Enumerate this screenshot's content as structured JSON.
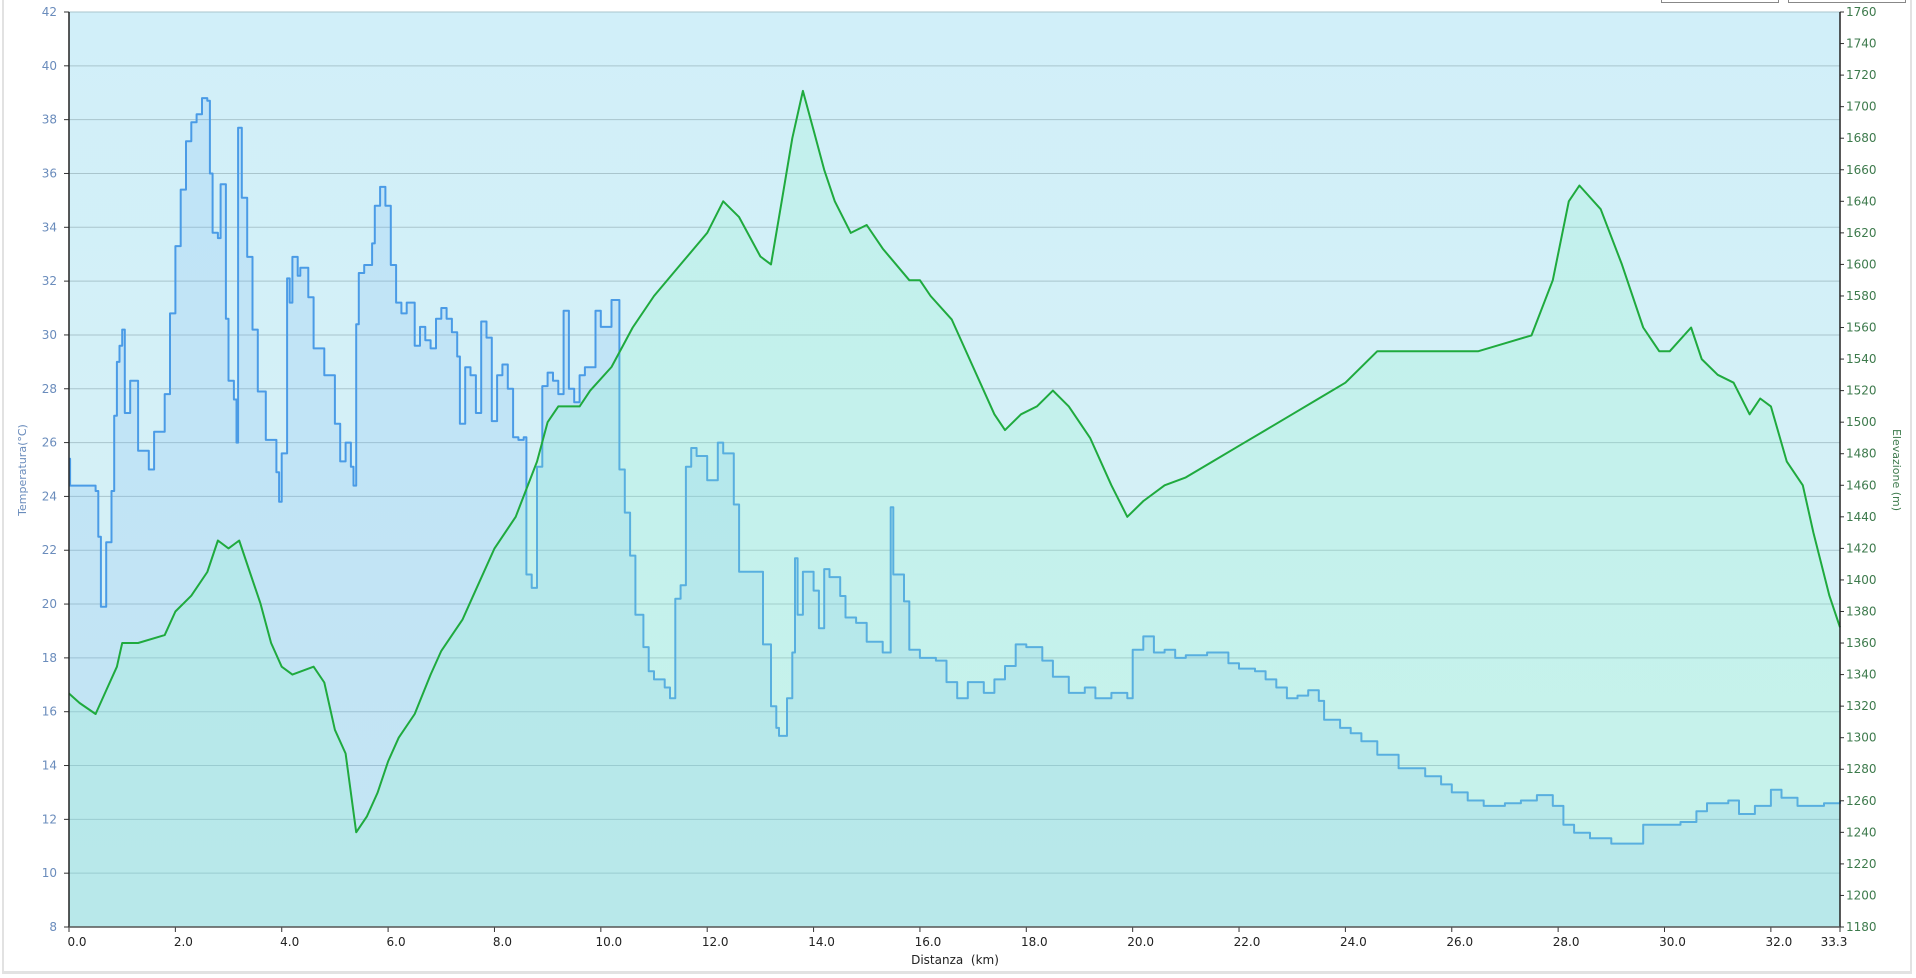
{
  "chart_data": {
    "type": "line",
    "title": "",
    "xlabel": "Distanza  (km)",
    "ylabel": "Temperatura(°C)",
    "y2label": "Elevazione (m)",
    "xlim": [
      0,
      33.3
    ],
    "ylim": [
      8,
      42
    ],
    "y2lim": [
      1180,
      1760
    ],
    "x_ticks": [
      "0.0",
      "2.0",
      "4.0",
      "6.0",
      "8.0",
      "10.0",
      "12.0",
      "14.0",
      "16.0",
      "18.0",
      "20.0",
      "22.0",
      "24.0",
      "26.0",
      "28.0",
      "30.0",
      "32.0",
      "33.3"
    ],
    "y_ticks": [
      8,
      10,
      12,
      14,
      16,
      18,
      20,
      22,
      24,
      26,
      28,
      30,
      32,
      34,
      36,
      38,
      40,
      42
    ],
    "y2_ticks": [
      1180,
      1200,
      1220,
      1240,
      1260,
      1280,
      1300,
      1320,
      1340,
      1360,
      1380,
      1400,
      1420,
      1440,
      1460,
      1480,
      1500,
      1520,
      1540,
      1560,
      1580,
      1600,
      1620,
      1640,
      1660,
      1680,
      1700,
      1720,
      1740,
      1760
    ],
    "grid": true,
    "colors": {
      "temperature": "#4a9be6",
      "elevation": "#1faa3e",
      "bg_top": "#d1eff9",
      "bg_bottom": "#d7f1f4",
      "grid": "#a9c5cd"
    },
    "series": [
      {
        "name": "Temperatura",
        "axis": "left",
        "step": true,
        "x": [
          0,
          0.02,
          0.5,
          0.55,
          0.6,
          0.7,
          0.8,
          0.85,
          0.9,
          0.95,
          1.0,
          1.05,
          1.15,
          1.3,
          1.5,
          1.6,
          1.8,
          1.9,
          2.0,
          2.1,
          2.2,
          2.3,
          2.4,
          2.5,
          2.6,
          2.65,
          2.7,
          2.8,
          2.85,
          2.95,
          3.0,
          3.1,
          3.15,
          3.18,
          3.25,
          3.35,
          3.45,
          3.55,
          3.7,
          3.9,
          3.95,
          4.0,
          4.1,
          4.15,
          4.2,
          4.3,
          4.35,
          4.5,
          4.6,
          4.8,
          5.0,
          5.1,
          5.2,
          5.3,
          5.35,
          5.4,
          5.45,
          5.55,
          5.7,
          5.75,
          5.85,
          5.95,
          6.05,
          6.15,
          6.25,
          6.35,
          6.5,
          6.6,
          6.7,
          6.8,
          6.9,
          7.0,
          7.1,
          7.2,
          7.3,
          7.35,
          7.45,
          7.55,
          7.65,
          7.75,
          7.85,
          7.95,
          8.05,
          8.15,
          8.25,
          8.35,
          8.45,
          8.55,
          8.6,
          8.7,
          8.8,
          8.9,
          9.0,
          9.1,
          9.2,
          9.3,
          9.4,
          9.5,
          9.6,
          9.7,
          9.9,
          10.0,
          10.2,
          10.35,
          10.45,
          10.55,
          10.65,
          10.8,
          10.9,
          11.0,
          11.2,
          11.3,
          11.4,
          11.5,
          11.6,
          11.7,
          11.8,
          12.0,
          12.2,
          12.3,
          12.5,
          12.6,
          12.9,
          13.05,
          13.2,
          13.3,
          13.35,
          13.5,
          13.6,
          13.65,
          13.7,
          13.8,
          14.0,
          14.1,
          14.2,
          14.3,
          14.5,
          14.6,
          14.8,
          15.0,
          15.3,
          15.45,
          15.5,
          15.7,
          15.8,
          16.0,
          16.3,
          16.5,
          16.7,
          16.9,
          17.2,
          17.4,
          17.6,
          17.8,
          18.0,
          18.3,
          18.5,
          18.8,
          19.1,
          19.3,
          19.6,
          19.9,
          20.0,
          20.2,
          20.4,
          20.6,
          20.8,
          21.0,
          21.4,
          21.8,
          22.0,
          22.3,
          22.5,
          22.7,
          22.9,
          23.1,
          23.3,
          23.5,
          23.6,
          23.9,
          24.1,
          24.3,
          24.6,
          25.0,
          25.5,
          25.8,
          26.0,
          26.3,
          26.6,
          27.0,
          27.3,
          27.6,
          27.9,
          28.1,
          28.3,
          28.6,
          29.0,
          29.4,
          29.6,
          30.0,
          30.3,
          30.6,
          30.8,
          31.2,
          31.4,
          31.7,
          32.0,
          32.2,
          32.5,
          33.0,
          33.3
        ],
        "values": [
          25.4,
          24.4,
          24.2,
          22.5,
          19.9,
          22.3,
          24.2,
          27,
          29,
          29.6,
          30.2,
          27.1,
          28.3,
          25.7,
          25,
          26.4,
          27.8,
          30.8,
          33.3,
          35.4,
          37.2,
          37.9,
          38.2,
          38.8,
          38.7,
          36,
          33.8,
          33.6,
          35.6,
          30.6,
          28.3,
          27.6,
          26,
          37.7,
          35.1,
          32.9,
          30.2,
          27.9,
          26.1,
          24.9,
          23.8,
          25.6,
          32.1,
          31.2,
          32.9,
          32.2,
          32.5,
          31.4,
          29.5,
          28.5,
          26.7,
          25.3,
          26,
          25.1,
          24.4,
          30.4,
          32.3,
          32.6,
          33.4,
          34.8,
          35.5,
          34.8,
          32.6,
          31.2,
          30.8,
          31.2,
          29.6,
          30.3,
          29.8,
          29.5,
          30.6,
          31,
          30.6,
          30.1,
          29.2,
          26.7,
          28.8,
          28.5,
          27.1,
          30.5,
          29.9,
          26.8,
          28.5,
          28.9,
          28,
          26.2,
          26.1,
          26.2,
          21.1,
          20.6,
          25.1,
          28.1,
          28.6,
          28.3,
          27.8,
          30.9,
          28,
          27.5,
          28.5,
          28.8,
          30.9,
          30.3,
          31.3,
          25,
          23.4,
          21.8,
          19.6,
          18.4,
          17.5,
          17.2,
          16.9,
          16.5,
          20.2,
          20.7,
          25.1,
          25.8,
          25.5,
          24.6,
          26,
          25.6,
          23.7,
          21.2,
          21.2,
          18.5,
          16.2,
          15.4,
          15.1,
          16.5,
          18.2,
          21.7,
          19.6,
          21.2,
          20.5,
          19.1,
          21.3,
          21,
          20.3,
          19.5,
          19.3,
          18.6,
          18.2,
          23.6,
          21.1,
          20.1,
          18.3,
          18,
          17.9,
          17.1,
          16.5,
          17.1,
          16.7,
          17.2,
          17.7,
          18.5,
          18.4,
          17.9,
          17.3,
          16.7,
          16.9,
          16.5,
          16.7,
          16.5,
          18.3,
          18.8,
          18.2,
          18.3,
          18,
          18.1,
          18.2,
          17.8,
          17.6,
          17.5,
          17.2,
          16.9,
          16.5,
          16.6,
          16.8,
          16.4,
          15.7,
          15.4,
          15.2,
          14.9,
          14.4,
          13.9,
          13.6,
          13.3,
          13,
          12.7,
          12.5,
          12.6,
          12.7,
          12.9,
          12.5,
          11.8,
          11.5,
          11.3,
          11.1,
          11.1,
          11.8,
          11.8,
          11.9,
          12.3,
          12.6,
          12.7,
          12.2,
          12.5,
          13.1,
          12.8,
          12.5,
          12.6,
          12.7
        ]
      },
      {
        "name": "Elevazione",
        "axis": "right",
        "step": false,
        "x": [
          0,
          0.2,
          0.5,
          0.7,
          0.9,
          1.0,
          1.3,
          1.8,
          2.0,
          2.3,
          2.6,
          2.8,
          3.0,
          3.2,
          3.4,
          3.6,
          3.8,
          4.0,
          4.2,
          4.6,
          4.8,
          5.0,
          5.2,
          5.4,
          5.6,
          5.8,
          6.0,
          6.2,
          6.5,
          6.8,
          7.0,
          7.4,
          7.6,
          8.0,
          8.4,
          8.8,
          9.0,
          9.2,
          9.6,
          9.8,
          10.2,
          10.6,
          11.0,
          11.5,
          12.0,
          12.3,
          12.6,
          13.0,
          13.2,
          13.4,
          13.6,
          13.8,
          14.0,
          14.2,
          14.4,
          14.7,
          15.0,
          15.3,
          15.8,
          16.0,
          16.2,
          16.6,
          17.0,
          17.4,
          17.6,
          17.9,
          18.2,
          18.5,
          18.8,
          19.2,
          19.6,
          19.9,
          20.2,
          20.6,
          21.0,
          21.5,
          22.0,
          22.5,
          23.0,
          23.5,
          24.0,
          24.6,
          25.0,
          25.5,
          26.0,
          26.5,
          27.0,
          27.5,
          27.9,
          28.2,
          28.4,
          28.8,
          29.2,
          29.6,
          29.9,
          30.1,
          30.5,
          30.7,
          31.0,
          31.3,
          31.6,
          31.8,
          32.0,
          32.3,
          32.6,
          32.8,
          33.1,
          33.3
        ],
        "values": [
          1328,
          1322,
          1315,
          1330,
          1345,
          1360,
          1360,
          1365,
          1380,
          1390,
          1405,
          1425,
          1420,
          1425,
          1405,
          1385,
          1360,
          1345,
          1340,
          1345,
          1335,
          1305,
          1290,
          1240,
          1250,
          1265,
          1285,
          1300,
          1315,
          1340,
          1355,
          1375,
          1390,
          1420,
          1440,
          1475,
          1500,
          1510,
          1510,
          1520,
          1535,
          1560,
          1580,
          1600,
          1620,
          1640,
          1630,
          1605,
          1600,
          1640,
          1680,
          1710,
          1685,
          1660,
          1640,
          1620,
          1625,
          1610,
          1590,
          1590,
          1580,
          1565,
          1535,
          1505,
          1495,
          1505,
          1510,
          1520,
          1510,
          1490,
          1460,
          1440,
          1450,
          1460,
          1465,
          1475,
          1485,
          1495,
          1505,
          1515,
          1525,
          1545,
          1545,
          1545,
          1545,
          1545,
          1550,
          1555,
          1590,
          1640,
          1650,
          1635,
          1600,
          1560,
          1545,
          1545,
          1560,
          1540,
          1530,
          1525,
          1505,
          1515,
          1510,
          1475,
          1460,
          1430,
          1390,
          1370
        ]
      }
    ]
  }
}
